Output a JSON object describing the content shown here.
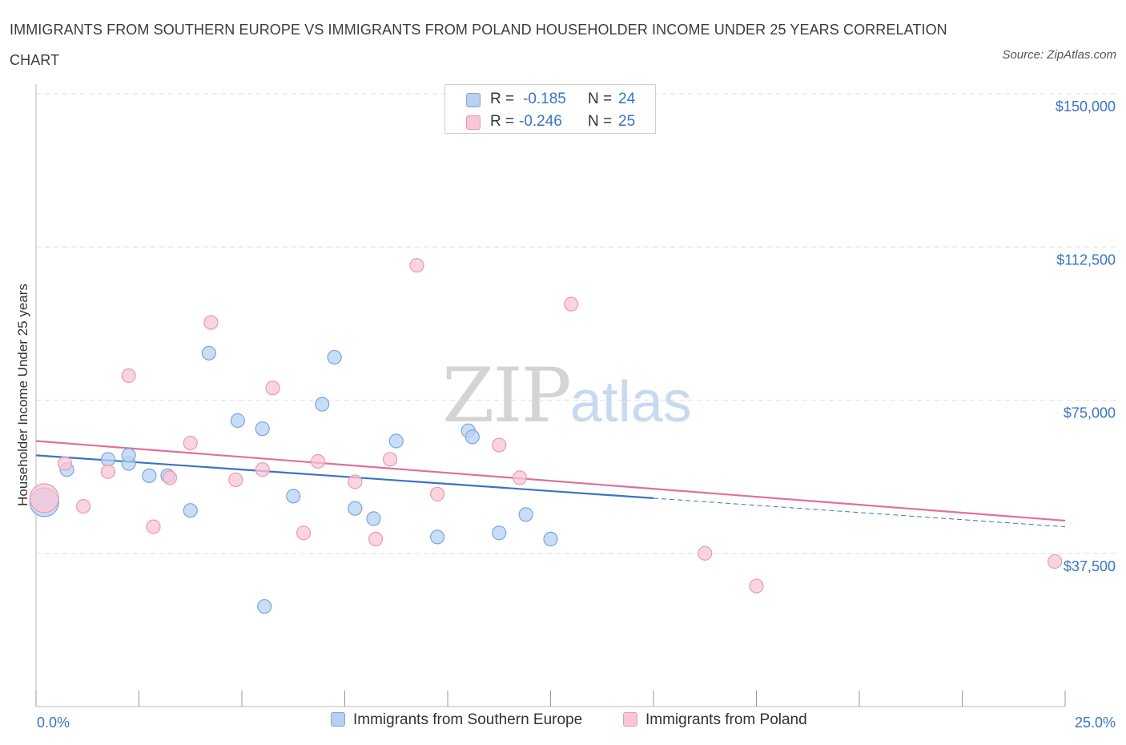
{
  "title": "IMMIGRANTS FROM SOUTHERN EUROPE VS IMMIGRANTS FROM POLAND HOUSEHOLDER INCOME UNDER 25 YEARS CORRELATION CHART",
  "source": "Source: ZipAtlas.com",
  "watermark": {
    "zip": "ZIP",
    "atlas": "atlas"
  },
  "legend": {
    "series1": {
      "r_label": "R =",
      "r_value": "-0.185",
      "n_label": "N =",
      "n_value": "24"
    },
    "series2": {
      "r_label": "R =",
      "r_value": "-0.246",
      "n_label": "N =",
      "n_value": "25"
    }
  },
  "colors": {
    "blue_fill": "#b8d1f3",
    "blue_stroke": "#7aa6dd",
    "blue_line": "#3a74c4",
    "pink_fill": "#f8c6d4",
    "pink_stroke": "#e99ab3",
    "pink_line": "#e0709a",
    "grid": "#dddddd",
    "axis_text": "#3a74c4"
  },
  "chart_data": {
    "type": "scatter",
    "title": "IMMIGRANTS FROM SOUTHERN EUROPE VS IMMIGRANTS FROM POLAND HOUSEHOLDER INCOME UNDER 25 YEARS CORRELATION CHART",
    "xlabel": "",
    "ylabel": "Householder Income Under 25 years",
    "xlim": [
      0,
      25
    ],
    "ylim": [
      0,
      150000
    ],
    "x_tick_labels": [
      "0.0%",
      "25.0%"
    ],
    "y_ticks": [
      37500,
      75000,
      112500,
      150000
    ],
    "y_tick_labels": [
      "$37,500",
      "$75,000",
      "$112,500",
      "$150,000"
    ],
    "grid": true,
    "series": [
      {
        "name": "Immigrants from Southern Europe",
        "color": "#b8d1f3",
        "r": -0.185,
        "n": 24,
        "points": [
          {
            "x": 0.2,
            "y": 50000,
            "size": "large"
          },
          {
            "x": 0.75,
            "y": 58000
          },
          {
            "x": 1.75,
            "y": 60500
          },
          {
            "x": 2.25,
            "y": 59500
          },
          {
            "x": 2.25,
            "y": 61500
          },
          {
            "x": 2.75,
            "y": 56500
          },
          {
            "x": 3.2,
            "y": 56500
          },
          {
            "x": 3.75,
            "y": 48000
          },
          {
            "x": 4.2,
            "y": 86500
          },
          {
            "x": 4.9,
            "y": 70000
          },
          {
            "x": 5.5,
            "y": 68000
          },
          {
            "x": 5.55,
            "y": 24500
          },
          {
            "x": 6.25,
            "y": 51500
          },
          {
            "x": 6.95,
            "y": 74000
          },
          {
            "x": 7.25,
            "y": 85500
          },
          {
            "x": 7.75,
            "y": 48500
          },
          {
            "x": 8.2,
            "y": 46000
          },
          {
            "x": 8.75,
            "y": 65000
          },
          {
            "x": 9.75,
            "y": 41500
          },
          {
            "x": 10.5,
            "y": 67500
          },
          {
            "x": 10.6,
            "y": 66000
          },
          {
            "x": 11.25,
            "y": 42500
          },
          {
            "x": 11.9,
            "y": 47000
          },
          {
            "x": 12.5,
            "y": 41000
          }
        ],
        "trend": {
          "x_start": 0,
          "y_start": 61500,
          "x_solid_end": 15,
          "y_solid_end": 51000,
          "x_end": 25,
          "y_end": 44000
        }
      },
      {
        "name": "Immigrants from Poland",
        "color": "#f8c6d4",
        "r": -0.246,
        "n": 25,
        "points": [
          {
            "x": 0.2,
            "y": 51000,
            "size": "large"
          },
          {
            "x": 0.7,
            "y": 59500
          },
          {
            "x": 1.15,
            "y": 49000
          },
          {
            "x": 1.75,
            "y": 57500
          },
          {
            "x": 2.25,
            "y": 81000
          },
          {
            "x": 2.85,
            "y": 44000
          },
          {
            "x": 3.25,
            "y": 56000
          },
          {
            "x": 3.75,
            "y": 64500
          },
          {
            "x": 4.25,
            "y": 94000
          },
          {
            "x": 4.85,
            "y": 55500
          },
          {
            "x": 5.5,
            "y": 58000
          },
          {
            "x": 5.75,
            "y": 78000
          },
          {
            "x": 6.5,
            "y": 42500
          },
          {
            "x": 6.85,
            "y": 60000
          },
          {
            "x": 7.75,
            "y": 55000
          },
          {
            "x": 8.25,
            "y": 41000
          },
          {
            "x": 8.6,
            "y": 60500
          },
          {
            "x": 9.25,
            "y": 108000
          },
          {
            "x": 9.75,
            "y": 52000
          },
          {
            "x": 11.25,
            "y": 64000
          },
          {
            "x": 11.75,
            "y": 56000
          },
          {
            "x": 13.0,
            "y": 98500
          },
          {
            "x": 16.25,
            "y": 37500
          },
          {
            "x": 17.5,
            "y": 29500
          },
          {
            "x": 24.75,
            "y": 35500
          }
        ],
        "trend": {
          "x_start": 0,
          "y_start": 65000,
          "x_end": 25,
          "y_end": 45500
        }
      }
    ]
  }
}
